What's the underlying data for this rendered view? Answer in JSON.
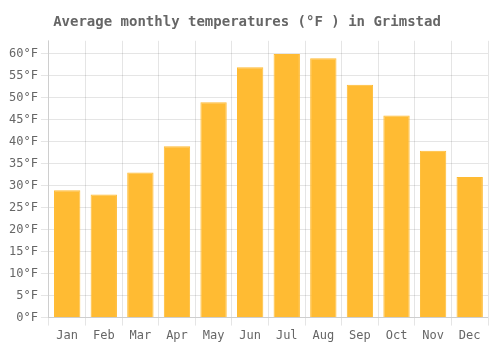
{
  "chart_data": {
    "type": "bar",
    "title": "Average monthly temperatures (°F ) in Grimstad",
    "categories": [
      "Jan",
      "Feb",
      "Mar",
      "Apr",
      "May",
      "Jun",
      "Jul",
      "Aug",
      "Sep",
      "Oct",
      "Nov",
      "Dec"
    ],
    "values": [
      29,
      28,
      33,
      39,
      49,
      57,
      60,
      59,
      53,
      46,
      38,
      32
    ],
    "color": "#FFBB33",
    "ylim": [
      0,
      63
    ],
    "yticks": [
      {
        "value": 0,
        "label": "0°F"
      },
      {
        "value": 5,
        "label": "5°F"
      },
      {
        "value": 10,
        "label": "10°F"
      },
      {
        "value": 15,
        "label": "15°F"
      },
      {
        "value": 20,
        "label": "20°F"
      },
      {
        "value": 25,
        "label": "25°F"
      },
      {
        "value": 30,
        "label": "30°F"
      },
      {
        "value": 35,
        "label": "35°F"
      },
      {
        "value": 40,
        "label": "40°F"
      },
      {
        "value": 45,
        "label": "45°F"
      },
      {
        "value": 50,
        "label": "50°F"
      },
      {
        "value": 55,
        "label": "55°F"
      },
      {
        "value": 60,
        "label": "60°F"
      }
    ],
    "grid": true
  }
}
